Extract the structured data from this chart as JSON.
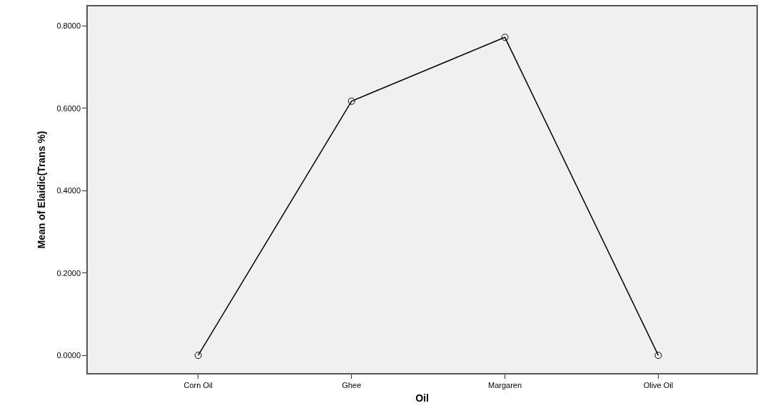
{
  "chart_data": {
    "type": "line",
    "xlabel": "Oil",
    "ylabel": "Mean of Elaidic(Trans %)",
    "categories": [
      "Corn Oil",
      "Ghee",
      "Margaren",
      "Olive Oil"
    ],
    "series": [
      {
        "color": "#000000",
        "values": [
          0,
          0.617,
          0.772,
          0
        ]
      }
    ],
    "ylim": [
      -0.043,
      0.847
    ],
    "yticks": [
      {
        "value": 0,
        "label": "0.0000"
      },
      {
        "value": 0.2,
        "label": "0.2000"
      },
      {
        "value": 0.4,
        "label": "0.4000"
      },
      {
        "value": 0.6,
        "label": "0.6000"
      },
      {
        "value": 0.8,
        "label": "0.8000"
      }
    ],
    "grid": false,
    "marker": "circle",
    "line_style": "solid"
  }
}
